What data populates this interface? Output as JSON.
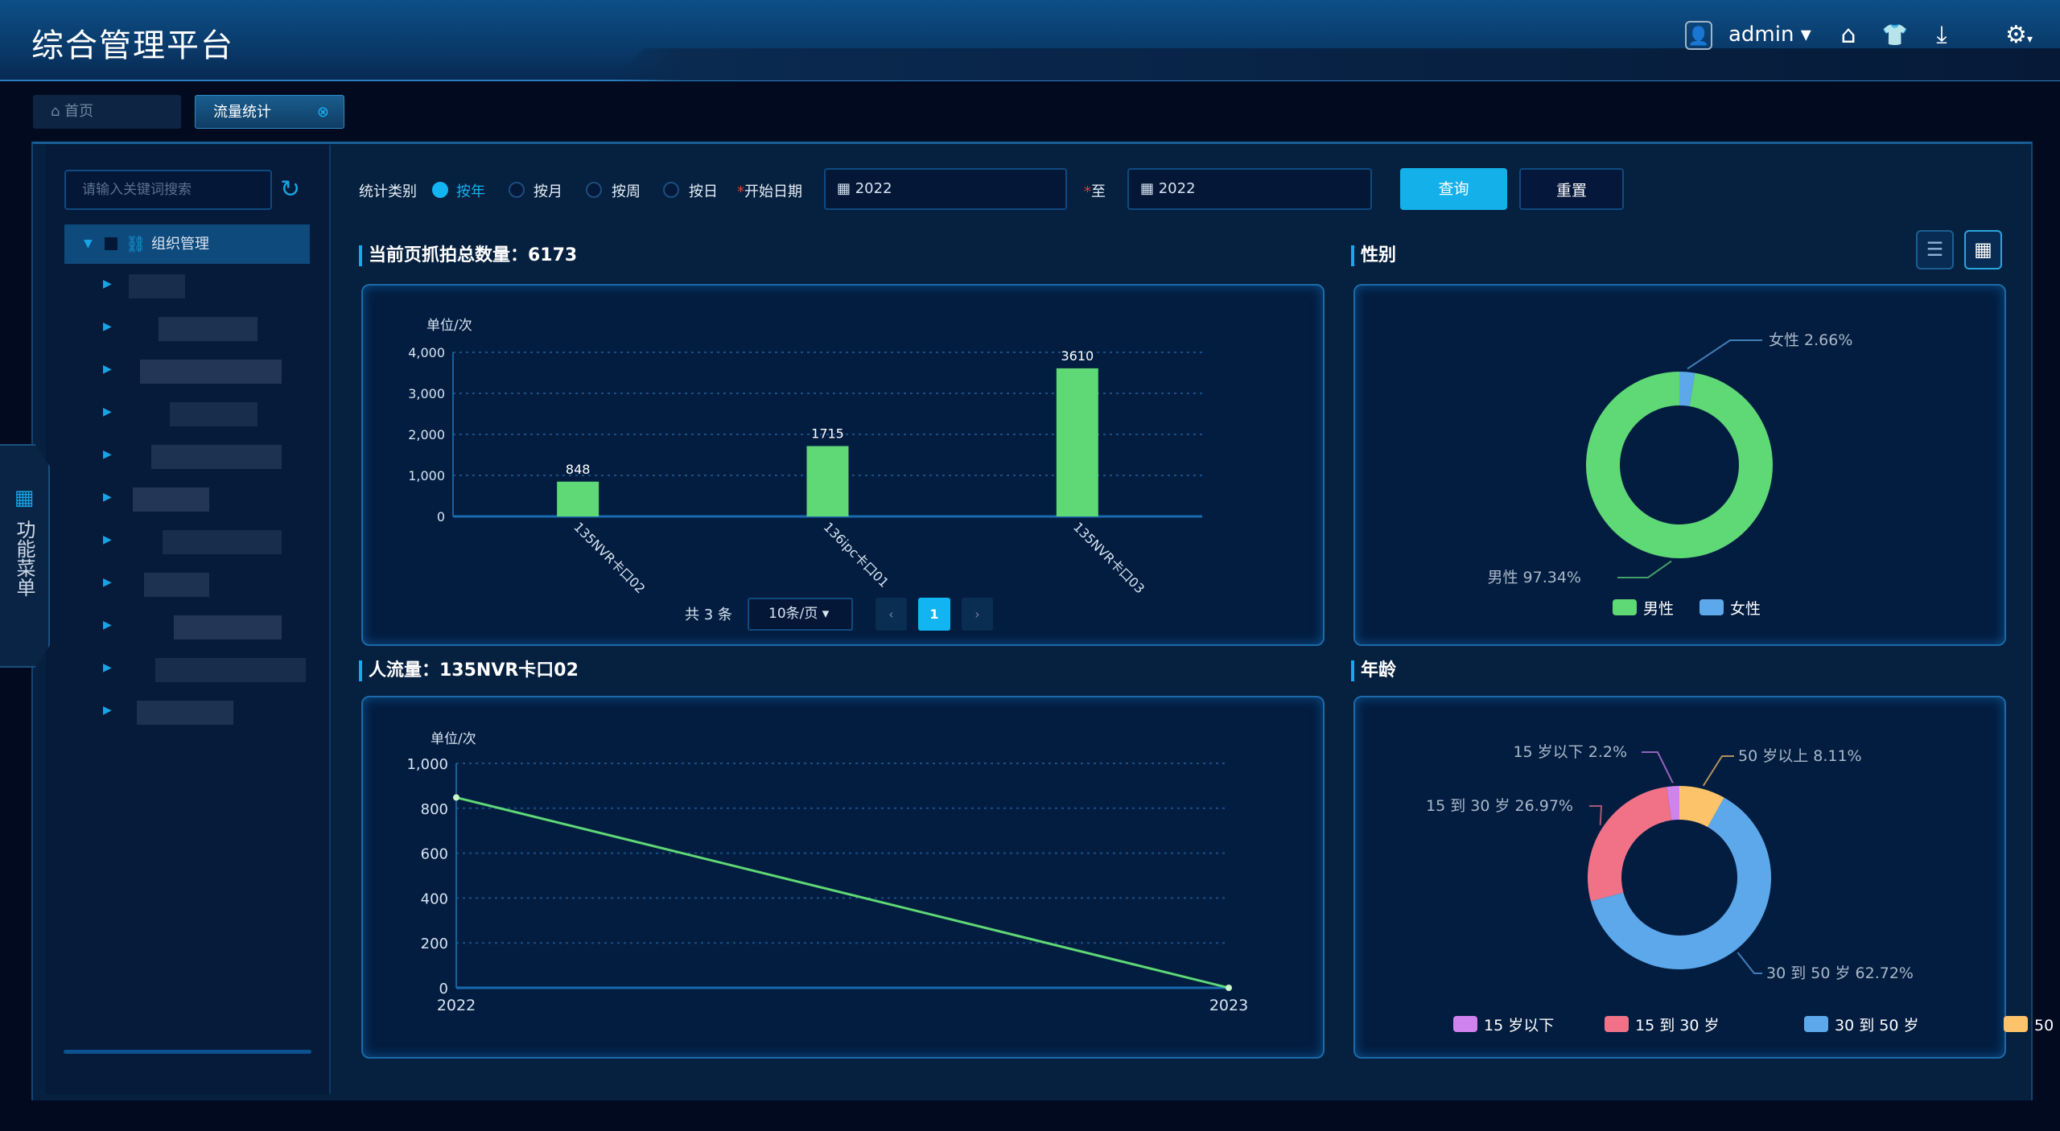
{
  "header": {
    "title": "综合管理平台",
    "user": "admin ▾",
    "icons": [
      "user-avatar-icon",
      "home-icon",
      "shirt-icon",
      "download-icon",
      "gear-icon"
    ]
  },
  "tabs": [
    {
      "label": "首页"
    },
    {
      "label": "流量统计"
    }
  ],
  "sidebar": {
    "search_placeholder": "请输入关键词搜索",
    "tree_root": "组织管理",
    "side_tab": "功能菜单"
  },
  "filter": {
    "category_label": "统计类别",
    "options": [
      "按年",
      "按月",
      "按周",
      "按日"
    ],
    "selected": "按年",
    "start_label": "开始日期",
    "start_value": "2022",
    "to_label": "至",
    "end_value": "2022",
    "query": "查询",
    "reset": "重置"
  },
  "sections": {
    "capture_total": "当前页抓拍总数量：6173",
    "gender": "性别",
    "flow": "人流量：135NVR卡口02",
    "age": "年龄"
  },
  "pagination": {
    "total": "共 3 条",
    "page_size": "10条/页 ▾",
    "current": "1",
    "prev": "‹",
    "next": "›"
  },
  "colors": {
    "green": "#5fd876",
    "blue": "#5ca8ea",
    "pink": "#f17287",
    "purple": "#cf83ee",
    "orange": "#fcc36a",
    "accent": "#14b0ea"
  },
  "chart_data": [
    {
      "type": "bar",
      "unit": "单位/次",
      "categories": [
        "135NVR卡口02",
        "136ipc卡口01",
        "135NVR卡口03"
      ],
      "values": [
        848,
        1715,
        3610
      ],
      "ylim": [
        0,
        4000
      ],
      "yticks": [
        "0",
        "1,000",
        "2,000",
        "3,000",
        "4,000"
      ],
      "grid": true
    },
    {
      "type": "pie",
      "style": "donut",
      "labels": [
        "男性 97.34%",
        "女性 2.66%"
      ],
      "series": [
        {
          "name": "男性",
          "value": 97.34,
          "color": "#5fd876"
        },
        {
          "name": "女性",
          "value": 2.66,
          "color": "#5ca8ea"
        }
      ],
      "legend": "bottom"
    },
    {
      "type": "line",
      "unit": "单位/次",
      "x": [
        "2022",
        "2023"
      ],
      "values": [
        848,
        0
      ],
      "ylim": [
        0,
        1000
      ],
      "yticks": [
        "0",
        "200",
        "400",
        "600",
        "800",
        "1,000"
      ],
      "grid": true
    },
    {
      "type": "pie",
      "style": "donut",
      "labels": [
        "15 岁以下 2.2%",
        "15 到 30 岁 26.97%",
        "30 到 50 岁 62.72%",
        "50 岁以上 8.11%"
      ],
      "series": [
        {
          "name": "15 岁以下",
          "value": 2.2,
          "color": "#cf83ee"
        },
        {
          "name": "15 到 30 岁",
          "value": 26.97,
          "color": "#f17287"
        },
        {
          "name": "30 到 50 岁",
          "value": 62.72,
          "color": "#5ca8ea"
        },
        {
          "name": "50 岁以上",
          "value": 8.11,
          "color": "#fcc36a"
        }
      ],
      "legend": "bottom"
    }
  ]
}
